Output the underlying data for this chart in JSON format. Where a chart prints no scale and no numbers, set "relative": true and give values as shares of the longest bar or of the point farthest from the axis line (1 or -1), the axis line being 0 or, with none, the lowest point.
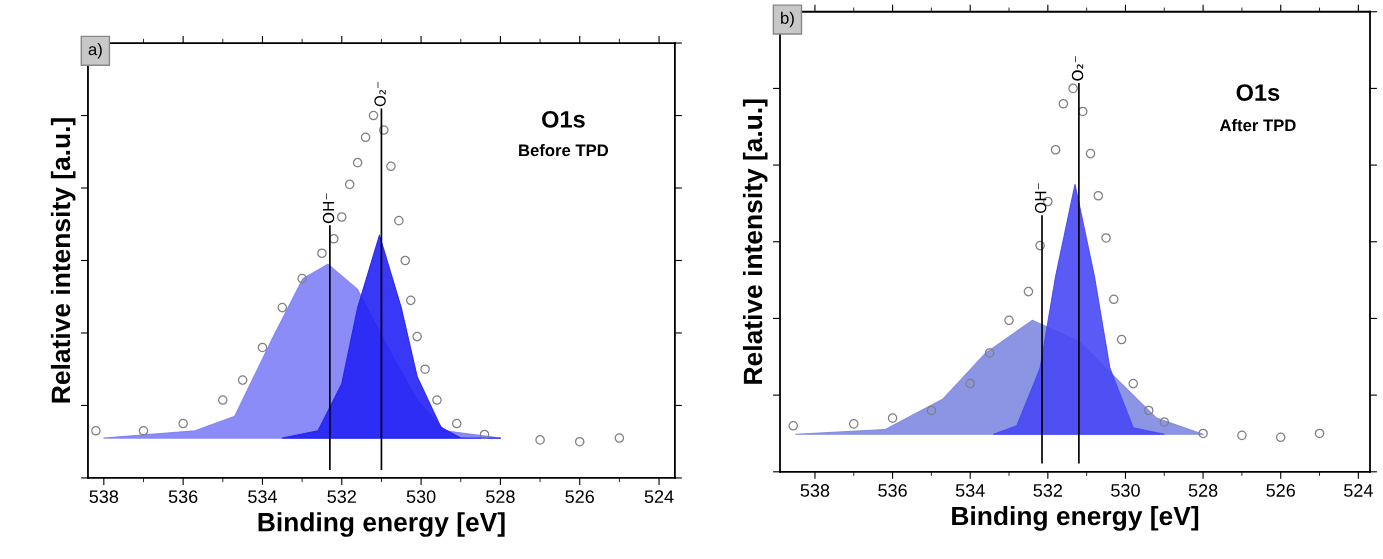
{
  "chart_data": [
    {
      "type": "scatter",
      "relative": true,
      "xlabel": "Binding energy [eV]",
      "ylabel": "Relative intensity [a.u.]",
      "xlim": [
        538.4,
        523.6
      ],
      "xticks": [
        538,
        536,
        534,
        532,
        530,
        528,
        526,
        524
      ],
      "tick_labels": "x",
      "grid": false,
      "legend": false,
      "annotations": [
        "a)",
        "O1s",
        "Before TPD"
      ],
      "ref_lines": [
        {
          "axis": "x",
          "value": 532.3,
          "label": "OH⁻",
          "color": "#000000"
        },
        {
          "axis": "x",
          "value": 531.0,
          "label": "O₂⁻",
          "color": "#000000"
        }
      ],
      "series": [
        {
          "type": "area",
          "color": "#8080f8",
          "x": [
            538,
            535.7,
            534.7,
            533.75,
            532.98,
            532.35,
            531.6,
            530.84,
            530.1,
            529.4,
            528
          ],
          "values": [
            0.11,
            0.13,
            0.17,
            0.385,
            0.55,
            0.59,
            0.52,
            0.36,
            0.215,
            0.13,
            0.11
          ]
        },
        {
          "type": "area",
          "color": "#2222f5",
          "x": [
            533.5,
            532.6,
            532.0,
            531.6,
            531.05,
            530.5,
            530.1,
            529.5,
            529,
            528
          ],
          "values": [
            0.11,
            0.13,
            0.26,
            0.47,
            0.67,
            0.47,
            0.28,
            0.14,
            0.11,
            0.11
          ]
        },
        {
          "marker": "circle",
          "color": "#808080",
          "x": [
            538.2,
            537,
            536,
            535,
            534.5,
            534,
            533.5,
            533,
            532.5,
            532.2,
            532,
            531.8,
            531.6,
            531.4,
            531.2,
            530.94,
            530.76,
            530.56,
            530.4,
            530.26,
            530.1,
            529.9,
            529.6,
            529.1,
            528.4,
            527,
            526,
            525
          ],
          "values": [
            0.13,
            0.13,
            0.15,
            0.215,
            0.27,
            0.36,
            0.47,
            0.55,
            0.62,
            0.66,
            0.72,
            0.81,
            0.87,
            0.94,
            1.0,
            0.96,
            0.86,
            0.71,
            0.6,
            0.49,
            0.39,
            0.3,
            0.215,
            0.15,
            0.12,
            0.105,
            0.1,
            0.11
          ]
        }
      ]
    },
    {
      "type": "scatter",
      "relative": true,
      "xlabel": "Binding energy [eV]",
      "ylabel": "Relative intensity [a.u.]",
      "xlim": [
        538.9,
        523.7
      ],
      "xticks": [
        538,
        536,
        534,
        532,
        530,
        528,
        526,
        524
      ],
      "tick_labels": "x",
      "grid": false,
      "legend": false,
      "annotations": [
        "b)",
        "O1s",
        "After TPD"
      ],
      "ref_lines": [
        {
          "axis": "x",
          "value": 532.15,
          "label": "OH⁻",
          "color": "#000000"
        },
        {
          "axis": "x",
          "value": 531.2,
          "label": "O₂⁻",
          "color": "#000000"
        }
      ],
      "series": [
        {
          "type": "area",
          "color": "#7f8ae0",
          "x": [
            538.5,
            536.2,
            534.7,
            533.6,
            532.4,
            531.2,
            530.2,
            529.2,
            528
          ],
          "values": [
            0.098,
            0.11,
            0.19,
            0.31,
            0.395,
            0.34,
            0.24,
            0.14,
            0.098
          ]
        },
        {
          "type": "area",
          "color": "#4848f5",
          "x": [
            533.4,
            532.8,
            532.2,
            531.8,
            531.3,
            530.8,
            530.4,
            529.8,
            529
          ],
          "values": [
            0.098,
            0.12,
            0.27,
            0.51,
            0.75,
            0.51,
            0.27,
            0.115,
            0.098
          ]
        },
        {
          "marker": "circle",
          "color": "#808080",
          "x": [
            538.56,
            537,
            536,
            535,
            534,
            533.5,
            533,
            532.5,
            532.2,
            532,
            531.8,
            531.6,
            531.35,
            531.1,
            530.9,
            530.7,
            530.5,
            530.3,
            530.1,
            529.8,
            529.4,
            529,
            528,
            527,
            526,
            525
          ],
          "values": [
            0.12,
            0.125,
            0.14,
            0.16,
            0.23,
            0.31,
            0.395,
            0.47,
            0.59,
            0.705,
            0.84,
            0.96,
            1.0,
            0.94,
            0.83,
            0.72,
            0.61,
            0.45,
            0.345,
            0.23,
            0.16,
            0.13,
            0.1,
            0.095,
            0.09,
            0.1
          ]
        }
      ]
    }
  ]
}
